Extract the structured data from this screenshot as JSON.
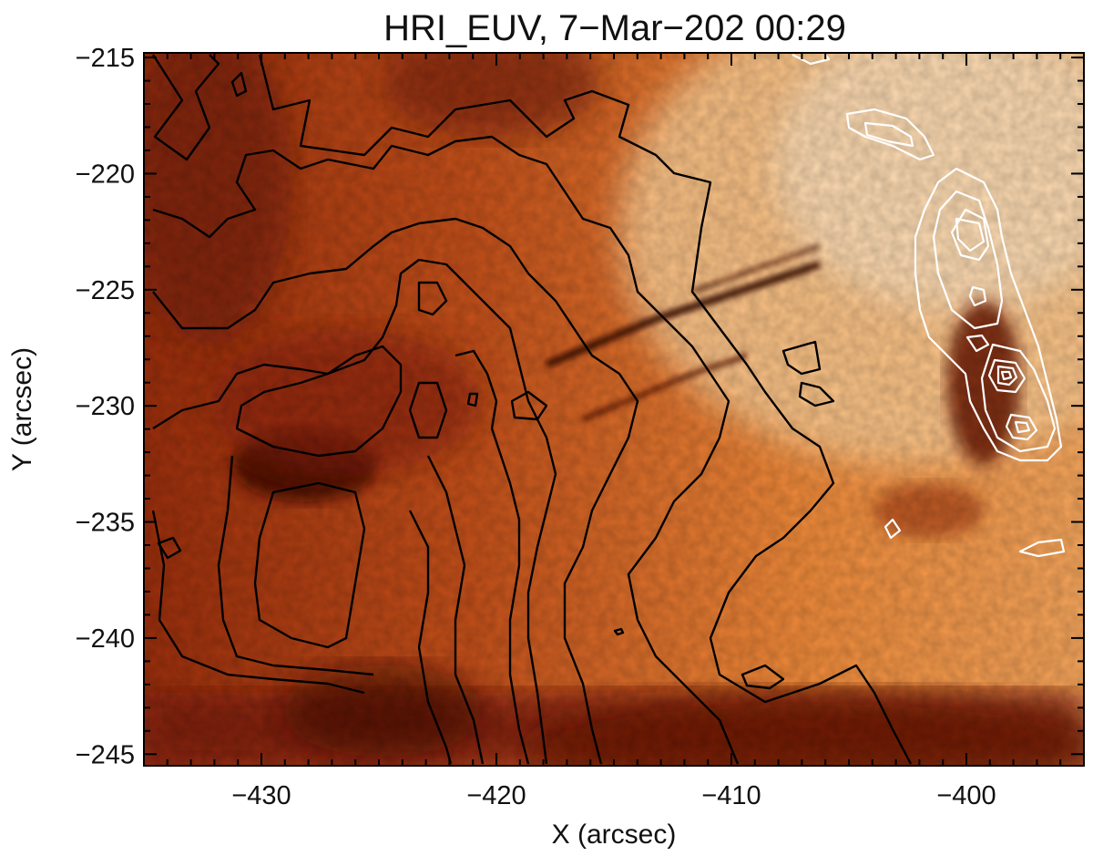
{
  "chart_data": {
    "type": "heatmap",
    "title": "HRI_EUV, 7−Mar−202 00:29",
    "xlabel": "X (arcsec)",
    "ylabel": "Y (arcsec)",
    "xlim": [
      -435,
      -395
    ],
    "ylim": [
      -245.5,
      -214.8
    ],
    "x_ticks": [
      -430,
      -420,
      -410,
      -400
    ],
    "x_tick_labels": [
      "−430",
      "−420",
      "−410",
      "−400"
    ],
    "y_ticks": [
      -215,
      -220,
      -225,
      -230,
      -235,
      -240,
      -245
    ],
    "y_tick_labels": [
      "−215",
      "−220",
      "−225",
      "−230",
      "−235",
      "−240",
      "−245"
    ],
    "grid": false,
    "colormap": [
      "#3a0a04",
      "#7a1e0a",
      "#b5400f",
      "#e06a20",
      "#f59a4a",
      "#ffd9b0"
    ],
    "contour_colors": {
      "background_field": "#000000",
      "overlay_field": "#ffffff"
    }
  }
}
